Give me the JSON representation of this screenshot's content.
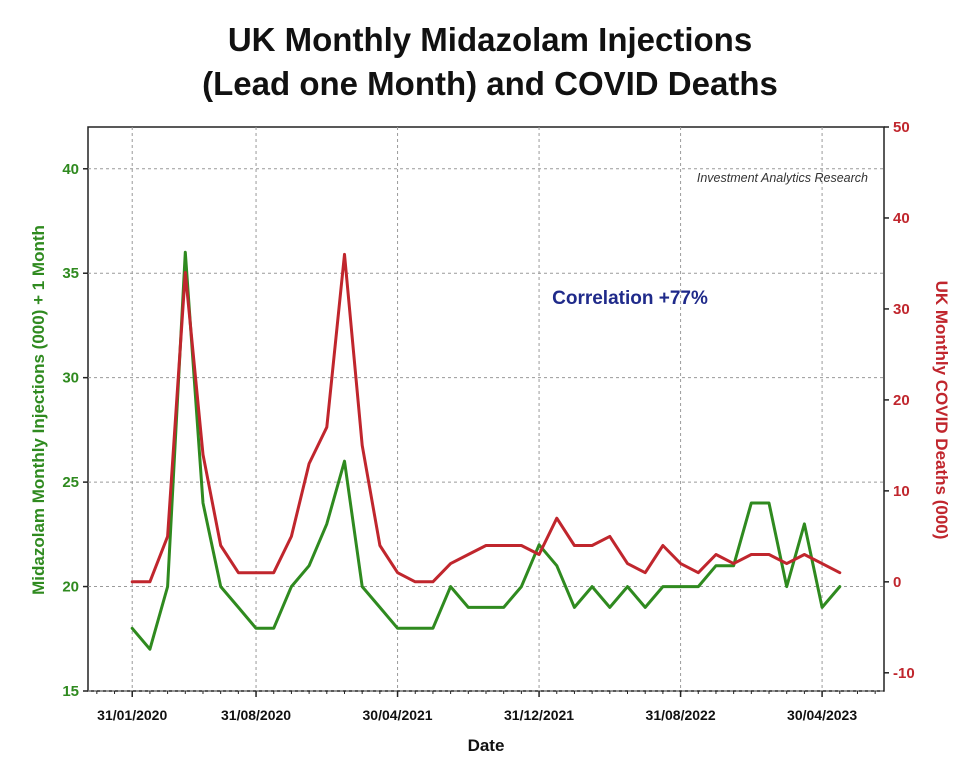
{
  "chart_data": {
    "type": "line",
    "title": [
      "UK Monthly Midazolam Injections",
      "(Lead one Month) and COVID Deaths"
    ],
    "xlabel": "Date",
    "ylabel_left": "Midazolam Monthly Injections (000) + 1 Month",
    "ylabel_right": "UK Monthly COVID Deaths (000)",
    "x_ticks": [
      "31/01/2020",
      "31/08/2020",
      "30/04/2021",
      "31/12/2021",
      "31/08/2022",
      "30/04/2023"
    ],
    "x_tick_index": [
      0,
      7,
      15,
      23,
      31,
      39
    ],
    "x_range_index": [
      -2.5,
      42.5
    ],
    "ylim_left": [
      15,
      42
    ],
    "ylim_right": [
      -12,
      50
    ],
    "yticks_left": [
      15,
      20,
      25,
      30,
      35,
      40
    ],
    "yticks_right": [
      -10,
      0,
      10,
      20,
      30,
      40,
      50
    ],
    "grid": true,
    "annotation_corr": "Correlation +77%",
    "credit": "Investment Analytics Research",
    "series": [
      {
        "name": "Midazolam Monthly Injections (000) + 1 Month",
        "axis": "left",
        "color": "#2f8a1f",
        "values": [
          18,
          17,
          20,
          36,
          24,
          20,
          19,
          18,
          18,
          20,
          21,
          23,
          26,
          20,
          19,
          18,
          18,
          18,
          20,
          19,
          19,
          19,
          20,
          22,
          21,
          19,
          20,
          19,
          20,
          19,
          20,
          20,
          20,
          21,
          21,
          24,
          24,
          20,
          23,
          19,
          20
        ]
      },
      {
        "name": "UK Monthly COVID Deaths (000)",
        "axis": "right",
        "color": "#c0262d",
        "values": [
          0,
          0,
          5,
          34,
          14,
          4,
          1,
          1,
          1,
          5,
          13,
          17,
          36,
          15,
          4,
          1,
          0,
          0,
          2,
          3,
          4,
          4,
          4,
          3,
          7,
          4,
          4,
          5,
          2,
          1,
          4,
          2,
          1,
          3,
          2,
          3,
          3,
          2,
          3,
          2,
          1
        ]
      }
    ]
  }
}
